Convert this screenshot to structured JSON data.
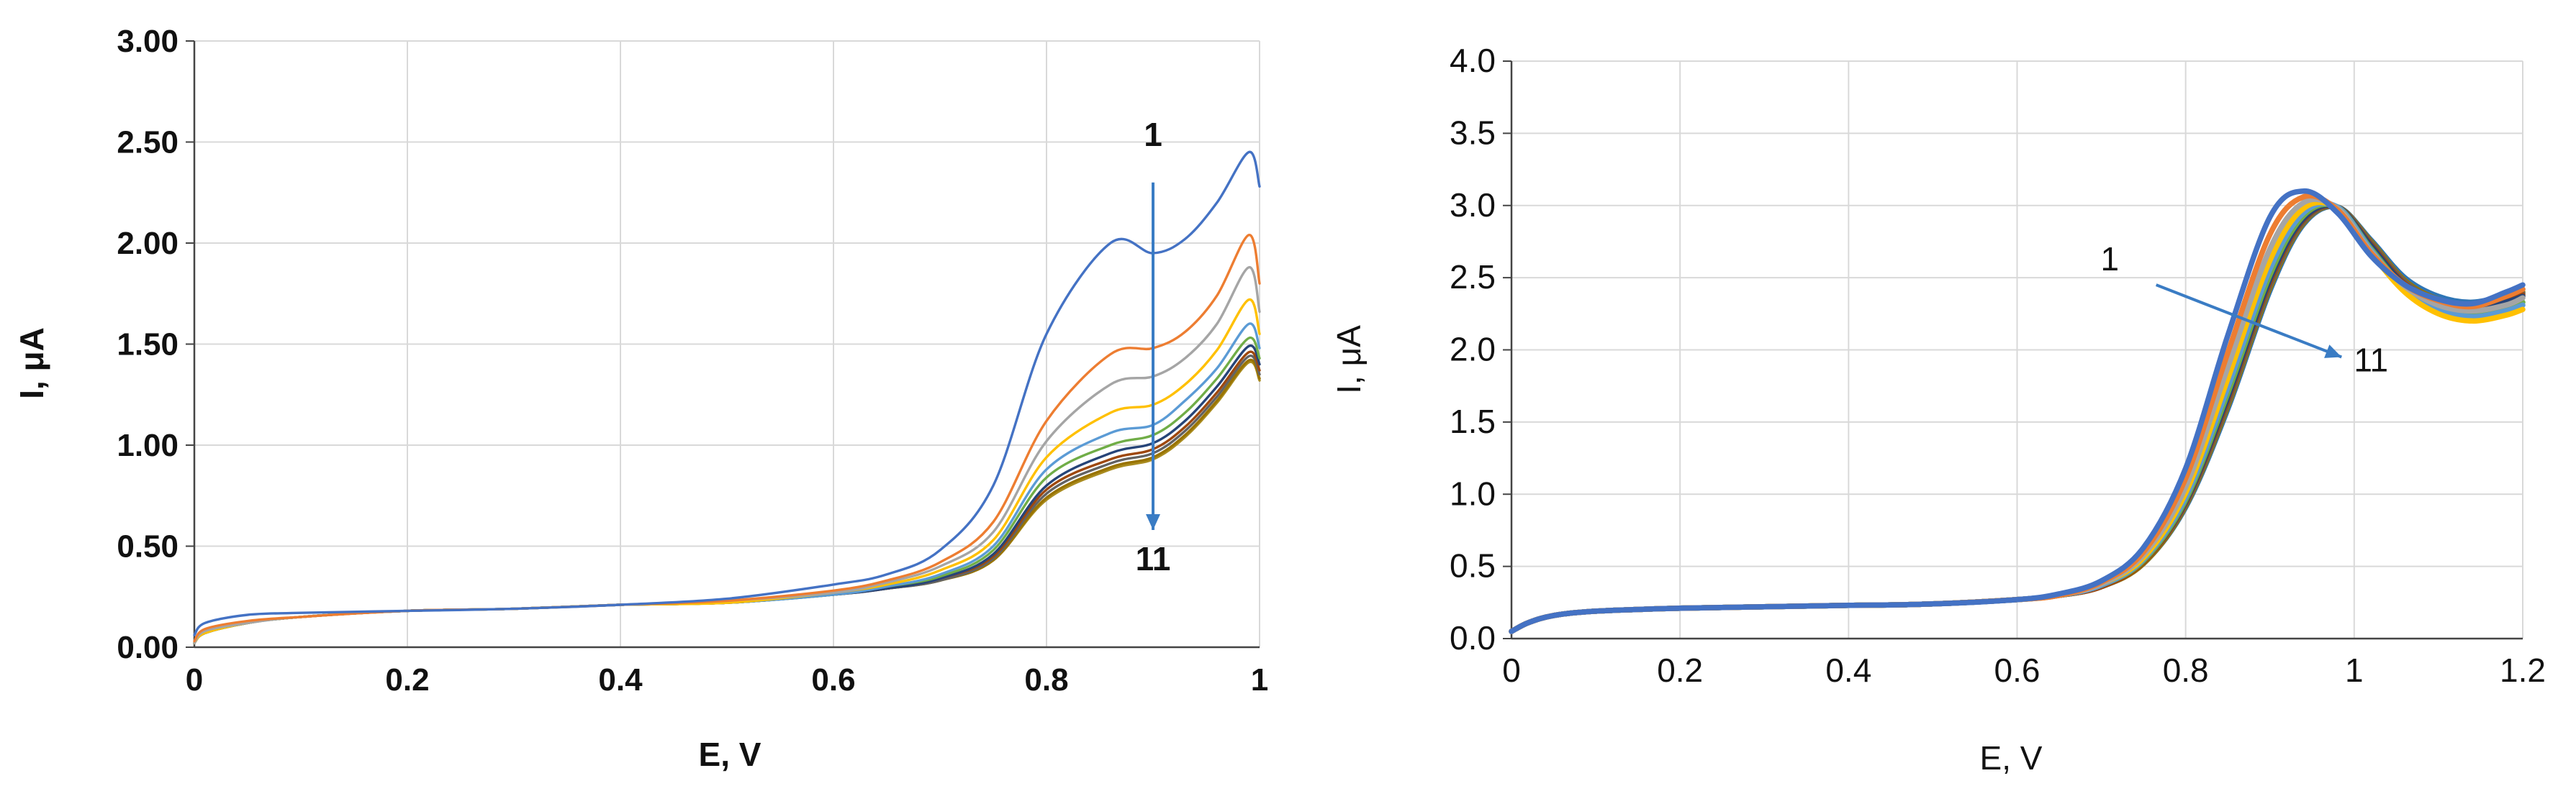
{
  "chart_data": [
    {
      "type": "line",
      "xlabel": "E, V",
      "ylabel": "I, μA",
      "xlim": [
        0,
        1
      ],
      "ylim": [
        0,
        3
      ],
      "x_ticks": [
        "0",
        "0.2",
        "0.4",
        "0.6",
        "0.8",
        "1"
      ],
      "y_ticks": [
        "0.00",
        "0.50",
        "1.00",
        "1.50",
        "2.00",
        "2.50",
        "3.00"
      ],
      "grid": true,
      "annotations": [
        {
          "text": "1",
          "x": 0.9,
          "y": 2.48
        },
        {
          "text": "11",
          "x": 0.9,
          "y": 0.38
        }
      ],
      "arrow": {
        "x1": 0.9,
        "y1": 2.3,
        "x2": 0.9,
        "y2": 0.58,
        "color": "#3a7cc4"
      },
      "x": [
        0,
        0.01,
        0.05,
        0.1,
        0.2,
        0.3,
        0.4,
        0.5,
        0.6,
        0.65,
        0.7,
        0.75,
        0.8,
        0.86,
        0.9,
        0.93,
        0.96,
        0.99,
        1.0
      ],
      "series": [
        {
          "color": "#4472c4",
          "values": [
            0.06,
            0.12,
            0.16,
            0.17,
            0.18,
            0.19,
            0.21,
            0.24,
            0.31,
            0.36,
            0.48,
            0.8,
            1.55,
            2.0,
            1.95,
            2.02,
            2.2,
            2.45,
            2.28
          ]
        },
        {
          "color": "#ed7d31",
          "values": [
            0.03,
            0.09,
            0.13,
            0.15,
            0.18,
            0.19,
            0.21,
            0.23,
            0.28,
            0.33,
            0.42,
            0.62,
            1.12,
            1.45,
            1.48,
            1.56,
            1.74,
            2.04,
            1.8
          ]
        },
        {
          "color": "#a5a5a5",
          "values": [
            0.02,
            0.08,
            0.12,
            0.15,
            0.18,
            0.19,
            0.21,
            0.23,
            0.27,
            0.32,
            0.4,
            0.57,
            1.02,
            1.3,
            1.34,
            1.43,
            1.6,
            1.88,
            1.66
          ]
        },
        {
          "color": "#ffc000",
          "values": [
            0.02,
            0.07,
            0.12,
            0.15,
            0.18,
            0.19,
            0.21,
            0.22,
            0.27,
            0.31,
            0.38,
            0.53,
            0.94,
            1.16,
            1.2,
            1.3,
            1.47,
            1.72,
            1.55
          ]
        },
        {
          "color": "#5b9bd5",
          "values": [
            0.02,
            0.07,
            0.12,
            0.15,
            0.18,
            0.19,
            0.21,
            0.22,
            0.26,
            0.3,
            0.36,
            0.5,
            0.88,
            1.06,
            1.1,
            1.22,
            1.38,
            1.6,
            1.48
          ]
        },
        {
          "color": "#70ad47",
          "values": [
            0.02,
            0.07,
            0.12,
            0.15,
            0.18,
            0.19,
            0.21,
            0.22,
            0.26,
            0.3,
            0.35,
            0.48,
            0.84,
            1.0,
            1.05,
            1.16,
            1.33,
            1.53,
            1.43
          ]
        },
        {
          "color": "#264478",
          "values": [
            0.02,
            0.07,
            0.12,
            0.15,
            0.18,
            0.19,
            0.21,
            0.22,
            0.26,
            0.29,
            0.34,
            0.46,
            0.8,
            0.96,
            1.01,
            1.12,
            1.29,
            1.49,
            1.4
          ]
        },
        {
          "color": "#9e480e",
          "values": [
            0.02,
            0.07,
            0.12,
            0.15,
            0.18,
            0.19,
            0.21,
            0.22,
            0.26,
            0.29,
            0.34,
            0.45,
            0.78,
            0.93,
            0.98,
            1.09,
            1.26,
            1.46,
            1.37
          ]
        },
        {
          "color": "#636363",
          "values": [
            0.02,
            0.07,
            0.12,
            0.15,
            0.18,
            0.19,
            0.21,
            0.22,
            0.26,
            0.29,
            0.33,
            0.44,
            0.76,
            0.91,
            0.96,
            1.07,
            1.24,
            1.44,
            1.35
          ]
        },
        {
          "color": "#997300",
          "values": [
            0.02,
            0.07,
            0.12,
            0.15,
            0.18,
            0.19,
            0.21,
            0.22,
            0.26,
            0.29,
            0.33,
            0.43,
            0.74,
            0.89,
            0.94,
            1.05,
            1.22,
            1.42,
            1.33
          ]
        },
        {
          "color": "#a98b1f",
          "values": [
            0.02,
            0.07,
            0.12,
            0.15,
            0.18,
            0.19,
            0.21,
            0.22,
            0.26,
            0.29,
            0.33,
            0.43,
            0.73,
            0.88,
            0.93,
            1.04,
            1.21,
            1.41,
            1.32
          ]
        }
      ]
    },
    {
      "type": "line",
      "xlabel": "E, V",
      "ylabel": "I, μA",
      "xlim": [
        0,
        1.2
      ],
      "ylim": [
        0,
        4
      ],
      "x_ticks": [
        "0",
        "0.2",
        "0.4",
        "0.6",
        "0.8",
        "1",
        "1.2"
      ],
      "y_ticks": [
        "0.0",
        "0.5",
        "1.0",
        "1.5",
        "2.0",
        "2.5",
        "3.0",
        "3.5",
        "4.0"
      ],
      "grid": true,
      "annotations": [
        {
          "text": "1",
          "x": 0.71,
          "y": 2.55
        },
        {
          "text": "11",
          "x": 1.02,
          "y": 1.85
        }
      ],
      "arrow": {
        "x1": 0.765,
        "y1": 2.45,
        "x2": 0.985,
        "y2": 1.95,
        "color": "#3a7cc4"
      },
      "x": [
        0,
        0.02,
        0.05,
        0.1,
        0.2,
        0.3,
        0.4,
        0.5,
        0.6,
        0.65,
        0.7,
        0.75,
        0.8,
        0.85,
        0.9,
        0.94,
        0.98,
        1.02,
        1.06,
        1.1,
        1.14,
        1.18,
        1.2
      ],
      "series": [
        {
          "color": "#4472c4",
          "values": [
            0.05,
            0.11,
            0.16,
            0.19,
            0.21,
            0.22,
            0.23,
            0.24,
            0.27,
            0.31,
            0.4,
            0.63,
            1.18,
            2.1,
            2.92,
            3.1,
            2.95,
            2.65,
            2.45,
            2.35,
            2.32,
            2.4,
            2.45
          ]
        },
        {
          "color": "#ed7d31",
          "values": [
            0.05,
            0.11,
            0.16,
            0.19,
            0.21,
            0.22,
            0.23,
            0.24,
            0.27,
            0.3,
            0.39,
            0.6,
            1.11,
            1.98,
            2.8,
            3.06,
            2.97,
            2.67,
            2.45,
            2.34,
            2.3,
            2.37,
            2.42
          ]
        },
        {
          "color": "#a5a5a5",
          "values": [
            0.05,
            0.11,
            0.16,
            0.19,
            0.21,
            0.22,
            0.23,
            0.24,
            0.27,
            0.3,
            0.38,
            0.58,
            1.05,
            1.88,
            2.7,
            3.02,
            2.98,
            2.68,
            2.44,
            2.31,
            2.27,
            2.31,
            2.36
          ]
        },
        {
          "color": "#ffc000",
          "values": [
            0.05,
            0.11,
            0.16,
            0.19,
            0.21,
            0.22,
            0.23,
            0.24,
            0.27,
            0.3,
            0.38,
            0.56,
            1.01,
            1.8,
            2.62,
            2.98,
            2.98,
            2.67,
            2.4,
            2.25,
            2.2,
            2.24,
            2.28
          ]
        },
        {
          "color": "#5b9bd5",
          "values": [
            0.05,
            0.11,
            0.16,
            0.19,
            0.21,
            0.22,
            0.23,
            0.24,
            0.27,
            0.3,
            0.37,
            0.55,
            0.98,
            1.74,
            2.56,
            2.95,
            2.99,
            2.69,
            2.42,
            2.28,
            2.23,
            2.27,
            2.31
          ]
        },
        {
          "color": "#70ad47",
          "values": [
            0.05,
            0.11,
            0.16,
            0.19,
            0.21,
            0.22,
            0.23,
            0.24,
            0.27,
            0.3,
            0.37,
            0.54,
            0.96,
            1.7,
            2.52,
            2.93,
            2.99,
            2.7,
            2.43,
            2.29,
            2.25,
            2.29,
            2.33
          ]
        },
        {
          "color": "#264478",
          "values": [
            0.05,
            0.11,
            0.16,
            0.19,
            0.21,
            0.22,
            0.23,
            0.24,
            0.27,
            0.3,
            0.37,
            0.54,
            0.95,
            1.67,
            2.49,
            2.91,
            2.99,
            2.72,
            2.45,
            2.32,
            2.28,
            2.33,
            2.37
          ]
        },
        {
          "color": "#9e480e",
          "values": [
            0.05,
            0.11,
            0.16,
            0.19,
            0.21,
            0.22,
            0.23,
            0.24,
            0.27,
            0.3,
            0.36,
            0.53,
            0.94,
            1.65,
            2.47,
            2.9,
            2.99,
            2.73,
            2.46,
            2.33,
            2.29,
            2.34,
            2.38
          ]
        },
        {
          "color": "#636363",
          "values": [
            0.05,
            0.11,
            0.16,
            0.19,
            0.21,
            0.22,
            0.23,
            0.24,
            0.27,
            0.3,
            0.36,
            0.53,
            0.93,
            1.63,
            2.45,
            2.89,
            2.99,
            2.74,
            2.47,
            2.34,
            2.3,
            2.35,
            2.39
          ]
        },
        {
          "color": "#997300",
          "values": [
            0.05,
            0.11,
            0.16,
            0.19,
            0.21,
            0.22,
            0.23,
            0.24,
            0.27,
            0.3,
            0.36,
            0.52,
            0.92,
            1.61,
            2.43,
            2.88,
            2.99,
            2.75,
            2.48,
            2.35,
            2.31,
            2.36,
            2.4
          ]
        },
        {
          "color": "#2e75b6",
          "values": [
            0.05,
            0.11,
            0.16,
            0.19,
            0.21,
            0.22,
            0.23,
            0.24,
            0.27,
            0.3,
            0.36,
            0.52,
            0.91,
            1.59,
            2.41,
            2.87,
            2.99,
            2.76,
            2.5,
            2.37,
            2.33,
            2.38,
            2.42
          ]
        }
      ]
    }
  ]
}
